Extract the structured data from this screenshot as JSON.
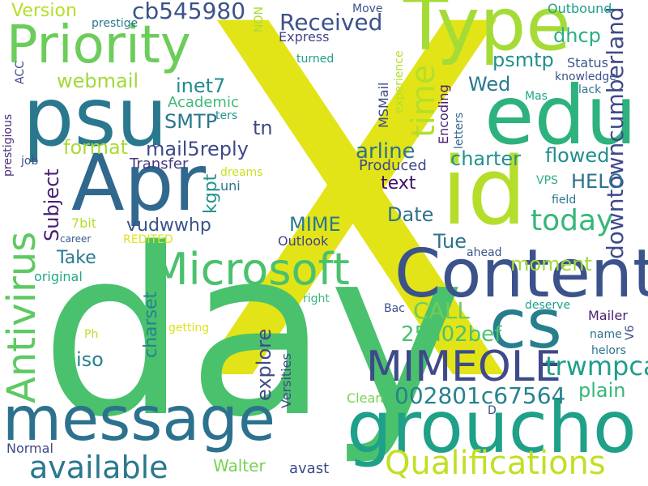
{
  "word_cloud": {
    "words": [
      {
        "text": "X",
        "color": "#e2e418",
        "orientation": "horizontal"
      },
      {
        "text": "day",
        "color": "#4ac16d",
        "orientation": "horizontal"
      },
      {
        "text": "id",
        "color": "#b5de2b",
        "orientation": "horizontal"
      },
      {
        "text": "psu",
        "color": "#2a788e",
        "orientation": "horizontal"
      },
      {
        "text": "edu",
        "color": "#2db27d",
        "orientation": "horizontal"
      },
      {
        "text": "Apr",
        "color": "#31688e",
        "orientation": "horizontal"
      },
      {
        "text": "Type",
        "color": "#a5db36",
        "orientation": "horizontal"
      },
      {
        "text": "Content",
        "color": "#3b528b",
        "orientation": "horizontal"
      },
      {
        "text": "message",
        "color": "#2c728e",
        "orientation": "horizontal"
      },
      {
        "text": "groucho",
        "color": "#1fa088",
        "orientation": "horizontal"
      },
      {
        "text": "cs",
        "color": "#277f8e",
        "orientation": "horizontal"
      },
      {
        "text": "Priority",
        "color": "#6ccd5a",
        "orientation": "horizontal"
      },
      {
        "text": "Microsoft",
        "color": "#4ac16d",
        "orientation": "horizontal"
      },
      {
        "text": "Antivirus",
        "color": "#5ec962",
        "orientation": "vertical"
      },
      {
        "text": "MIMEOLE",
        "color": "#3e4a89",
        "orientation": "horizontal"
      },
      {
        "text": "Qualifications",
        "color": "#c2df23",
        "orientation": "horizontal"
      },
      {
        "text": "available",
        "color": "#2a788e",
        "orientation": "horizontal"
      },
      {
        "text": "time",
        "color": "#b5de2b",
        "orientation": "vertical"
      },
      {
        "text": "today",
        "color": "#35b779",
        "orientation": "horizontal"
      },
      {
        "text": "downtowncumberland",
        "color": "#3e4989",
        "orientation": "vertical"
      },
      {
        "text": "trwmpca",
        "color": "#1f9e89",
        "orientation": "horizontal"
      },
      {
        "text": "002801c67564",
        "color": "#25838e",
        "orientation": "horizontal"
      },
      {
        "text": "cb545980",
        "color": "#3b528b",
        "orientation": "horizontal"
      },
      {
        "text": "Received",
        "color": "#3b528b",
        "orientation": "horizontal"
      },
      {
        "text": "webmail",
        "color": "#a0da39",
        "orientation": "horizontal"
      },
      {
        "text": "inet7",
        "color": "#228c8d",
        "orientation": "horizontal"
      },
      {
        "text": "SMTP",
        "color": "#2a778e",
        "orientation": "horizontal"
      },
      {
        "text": "mail5reply",
        "color": "#3e4a89",
        "orientation": "horizontal"
      },
      {
        "text": "format",
        "color": "#a8db34",
        "orientation": "horizontal"
      },
      {
        "text": "tn",
        "color": "#3e4989",
        "orientation": "horizontal"
      },
      {
        "text": "arline",
        "color": "#2c738e",
        "orientation": "horizontal"
      },
      {
        "text": "charter",
        "color": "#21918c",
        "orientation": "horizontal"
      },
      {
        "text": "flowed",
        "color": "#228d8d",
        "orientation": "horizontal"
      },
      {
        "text": "HELO",
        "color": "#2c728e",
        "orientation": "horizontal"
      },
      {
        "text": "psmtp",
        "color": "#21918c",
        "orientation": "horizontal"
      },
      {
        "text": "dhcp",
        "color": "#29af7f",
        "orientation": "horizontal"
      },
      {
        "text": "Wed",
        "color": "#2a788e",
        "orientation": "horizontal"
      },
      {
        "text": "Version",
        "color": "#b5de2b",
        "orientation": "horizontal"
      },
      {
        "text": "Subject",
        "color": "#481f70",
        "orientation": "vertical"
      },
      {
        "text": "kgpt",
        "color": "#20928c",
        "orientation": "vertical"
      },
      {
        "text": "vudwwhp",
        "color": "#3b528b",
        "orientation": "horizontal"
      },
      {
        "text": "MIME",
        "color": "#2a788e",
        "orientation": "horizontal"
      },
      {
        "text": "Date",
        "color": "#2c728e",
        "orientation": "horizontal"
      },
      {
        "text": "Tue",
        "color": "#2c728e",
        "orientation": "horizontal"
      },
      {
        "text": "moment",
        "color": "#a0da39",
        "orientation": "horizontal"
      },
      {
        "text": "CALL",
        "color": "#6ccd5a",
        "orientation": "horizontal"
      },
      {
        "text": "25d02bef",
        "color": "#4ac16d",
        "orientation": "horizontal"
      },
      {
        "text": "Take",
        "color": "#2a788e",
        "orientation": "horizontal"
      },
      {
        "text": "explore",
        "color": "#3e4a89",
        "orientation": "vertical"
      },
      {
        "text": "charset",
        "color": "#25838e",
        "orientation": "vertical"
      },
      {
        "text": "iso",
        "color": "#25838e",
        "orientation": "horizontal"
      },
      {
        "text": "plain",
        "color": "#35b779",
        "orientation": "horizontal"
      },
      {
        "text": "text",
        "color": "#3b0f70",
        "orientation": "horizontal"
      },
      {
        "text": "Walter",
        "color": "#7ad151",
        "orientation": "horizontal"
      },
      {
        "text": "Academic",
        "color": "#3cbb75",
        "orientation": "horizontal"
      },
      {
        "text": "Transfer",
        "color": "#443983",
        "orientation": "horizontal"
      },
      {
        "text": "Produced",
        "color": "#3e4a89",
        "orientation": "horizontal"
      },
      {
        "text": "Outlook",
        "color": "#414487",
        "orientation": "horizontal"
      },
      {
        "text": "original",
        "color": "#22a884",
        "orientation": "horizontal"
      },
      {
        "text": "Outbound",
        "color": "#1f9e89",
        "orientation": "horizontal"
      },
      {
        "text": "Express",
        "color": "#414487",
        "orientation": "horizontal"
      },
      {
        "text": "Status",
        "color": "#38598c",
        "orientation": "horizontal"
      },
      {
        "text": "knowledge",
        "color": "#3b528b",
        "orientation": "horizontal"
      },
      {
        "text": "lack",
        "color": "#2c728e",
        "orientation": "horizontal"
      },
      {
        "text": "Mas",
        "color": "#21a685",
        "orientation": "horizontal"
      },
      {
        "text": "Encoding",
        "color": "#481f70",
        "orientation": "vertical"
      },
      {
        "text": "MSMail",
        "color": "#3e4a89",
        "orientation": "vertical"
      },
      {
        "text": "experience",
        "color": "#b5de2b",
        "orientation": "vertical"
      },
      {
        "text": "letters",
        "color": "#31688e",
        "orientation": "vertical"
      },
      {
        "text": "Move",
        "color": "#3b528b",
        "orientation": "horizontal"
      },
      {
        "text": "NON",
        "color": "#a8db34",
        "orientation": "vertical"
      },
      {
        "text": "turned",
        "color": "#1f9e89",
        "orientation": "horizontal"
      },
      {
        "text": "prestige",
        "color": "#2a788e",
        "orientation": "horizontal"
      },
      {
        "text": "prestigious",
        "color": "#472d7b",
        "orientation": "vertical"
      },
      {
        "text": "ACC",
        "color": "#3e4a89",
        "orientation": "vertical"
      },
      {
        "text": "ters",
        "color": "#21918c",
        "orientation": "horizontal"
      },
      {
        "text": "job",
        "color": "#3b528b",
        "orientation": "horizontal"
      },
      {
        "text": "dreams",
        "color": "#c8e020",
        "orientation": "horizontal"
      },
      {
        "text": "uni",
        "color": "#2c728e",
        "orientation": "horizontal"
      },
      {
        "text": "VPS",
        "color": "#2db27d",
        "orientation": "horizontal"
      },
      {
        "text": "field",
        "color": "#2a788e",
        "orientation": "horizontal"
      },
      {
        "text": "7bit",
        "color": "#b5de2b",
        "orientation": "horizontal"
      },
      {
        "text": "career",
        "color": "#38598c",
        "orientation": "horizontal"
      },
      {
        "text": "REDITED",
        "color": "#dde318",
        "orientation": "horizontal"
      },
      {
        "text": "ahead",
        "color": "#3b528b",
        "orientation": "horizontal"
      },
      {
        "text": "right",
        "color": "#35b779",
        "orientation": "horizontal"
      },
      {
        "text": "Ph",
        "color": "#bddf26",
        "orientation": "horizontal"
      },
      {
        "text": "getting",
        "color": "#dde318",
        "orientation": "horizontal"
      },
      {
        "text": "Versities",
        "color": "#3e4a89",
        "orientation": "vertical"
      },
      {
        "text": "Bac",
        "color": "#3b528b",
        "orientation": "horizontal"
      },
      {
        "text": "deserve",
        "color": "#1f9e89",
        "orientation": "horizontal"
      },
      {
        "text": "Mailer",
        "color": "#481f70",
        "orientation": "horizontal"
      },
      {
        "text": "V6",
        "color": "#3e4a89",
        "orientation": "vertical"
      },
      {
        "text": "name",
        "color": "#2c728e",
        "orientation": "horizontal"
      },
      {
        "text": "helors",
        "color": "#2c728e",
        "orientation": "horizontal"
      },
      {
        "text": "Clean",
        "color": "#7ad151",
        "orientation": "horizontal"
      },
      {
        "text": "D",
        "color": "#3e4a89",
        "orientation": "horizontal"
      },
      {
        "text": "Normal",
        "color": "#3e4a89",
        "orientation": "horizontal"
      },
      {
        "text": "avast",
        "color": "#3e4a89",
        "orientation": "horizontal"
      }
    ]
  }
}
